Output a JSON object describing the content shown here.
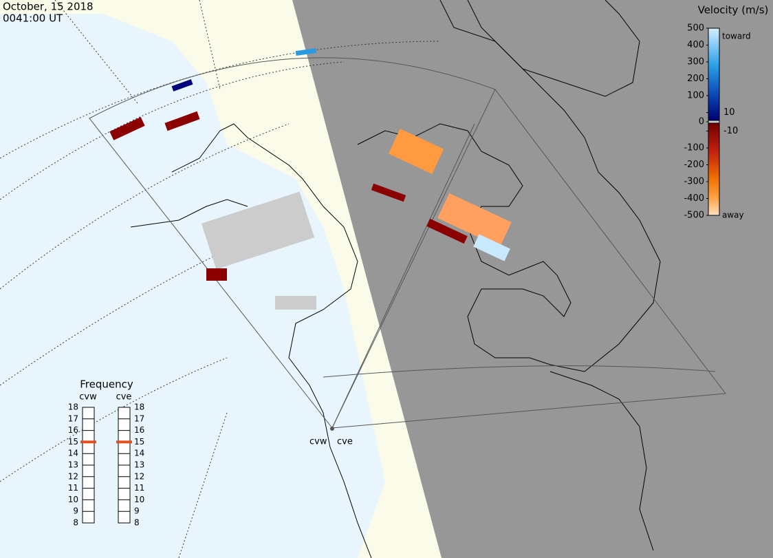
{
  "header": {
    "date": "October, 15 2018",
    "time": "0041:00 UT"
  },
  "colorbar": {
    "title": "Velocity (m/s)",
    "ticks": [
      500,
      400,
      300,
      200,
      100,
      10,
      0,
      -10,
      -100,
      -200,
      -300,
      -400,
      -500
    ],
    "top_label": "toward",
    "bottom_label": "away"
  },
  "frequency": {
    "title": "Frequency",
    "radars": [
      {
        "name": "cvw",
        "value": 15
      },
      {
        "name": "cve",
        "value": 15
      }
    ],
    "ticks": [
      18,
      17,
      16,
      15,
      14,
      13,
      12,
      11,
      10,
      9,
      8
    ]
  },
  "sites": [
    "cvw",
    "cve"
  ]
}
